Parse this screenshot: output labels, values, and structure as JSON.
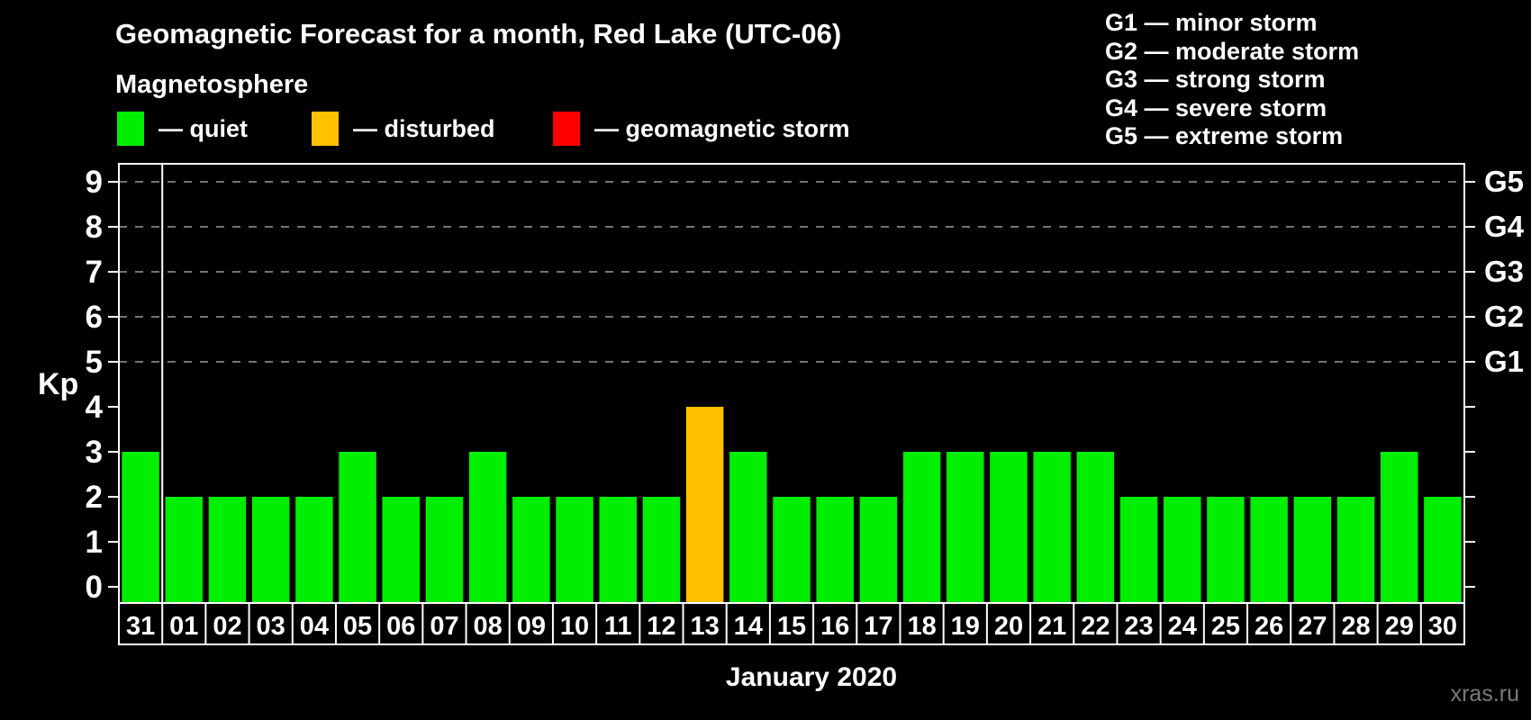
{
  "title": "Geomagnetic Forecast for a month, Red Lake (UTC-06)",
  "subtitle": "Magnetosphere",
  "legend": {
    "items": [
      {
        "status": "quiet",
        "label": "— quiet",
        "color": "#00ee00"
      },
      {
        "status": "disturbed",
        "label": "— disturbed",
        "color": "#ffc000"
      },
      {
        "status": "storm",
        "label": "— geomagnetic storm",
        "color": "#ff0000"
      }
    ]
  },
  "storm_scale": {
    "lines": [
      "G1 — minor storm",
      "G2 — moderate storm",
      "G3 — strong storm",
      "G4 — severe storm",
      "G5 — extreme storm"
    ]
  },
  "footer": {
    "month_label": "January 2020",
    "watermark": "xras.ru"
  },
  "chart_data": {
    "type": "bar",
    "title": "Geomagnetic Forecast for a month, Red Lake (UTC-06)",
    "xlabel": "January 2020",
    "ylabel": "Kp",
    "ylim": [
      0,
      9
    ],
    "yticks": [
      0,
      1,
      2,
      3,
      4,
      5,
      6,
      7,
      8,
      9
    ],
    "grid_dashed_at": [
      5,
      6,
      7,
      8,
      9
    ],
    "right_axis_labels": [
      {
        "kp": 5,
        "label": "G1"
      },
      {
        "kp": 6,
        "label": "G2"
      },
      {
        "kp": 7,
        "label": "G3"
      },
      {
        "kp": 8,
        "label": "G4"
      },
      {
        "kp": 9,
        "label": "G5"
      }
    ],
    "categories": [
      "31",
      "01",
      "02",
      "03",
      "04",
      "05",
      "06",
      "07",
      "08",
      "09",
      "10",
      "11",
      "12",
      "13",
      "14",
      "15",
      "16",
      "17",
      "18",
      "19",
      "20",
      "21",
      "22",
      "23",
      "24",
      "25",
      "26",
      "27",
      "28",
      "29",
      "30"
    ],
    "values": [
      3,
      2,
      2,
      2,
      2,
      3,
      2,
      2,
      3,
      2,
      2,
      2,
      2,
      4,
      3,
      2,
      2,
      2,
      3,
      3,
      3,
      3,
      3,
      2,
      2,
      2,
      2,
      2,
      2,
      3,
      2
    ],
    "statuses": [
      "quiet",
      "quiet",
      "quiet",
      "quiet",
      "quiet",
      "quiet",
      "quiet",
      "quiet",
      "quiet",
      "quiet",
      "quiet",
      "quiet",
      "quiet",
      "disturbed",
      "quiet",
      "quiet",
      "quiet",
      "quiet",
      "quiet",
      "quiet",
      "quiet",
      "quiet",
      "quiet",
      "quiet",
      "quiet",
      "quiet",
      "quiet",
      "quiet",
      "quiet",
      "quiet",
      "quiet"
    ],
    "separator_after_index": 0,
    "colors": {
      "quiet": "#00ee00",
      "disturbed": "#ffc000",
      "storm": "#ff0000",
      "axis": "#ffffff",
      "grid": "#9a9a9a",
      "background": "#000000"
    }
  }
}
